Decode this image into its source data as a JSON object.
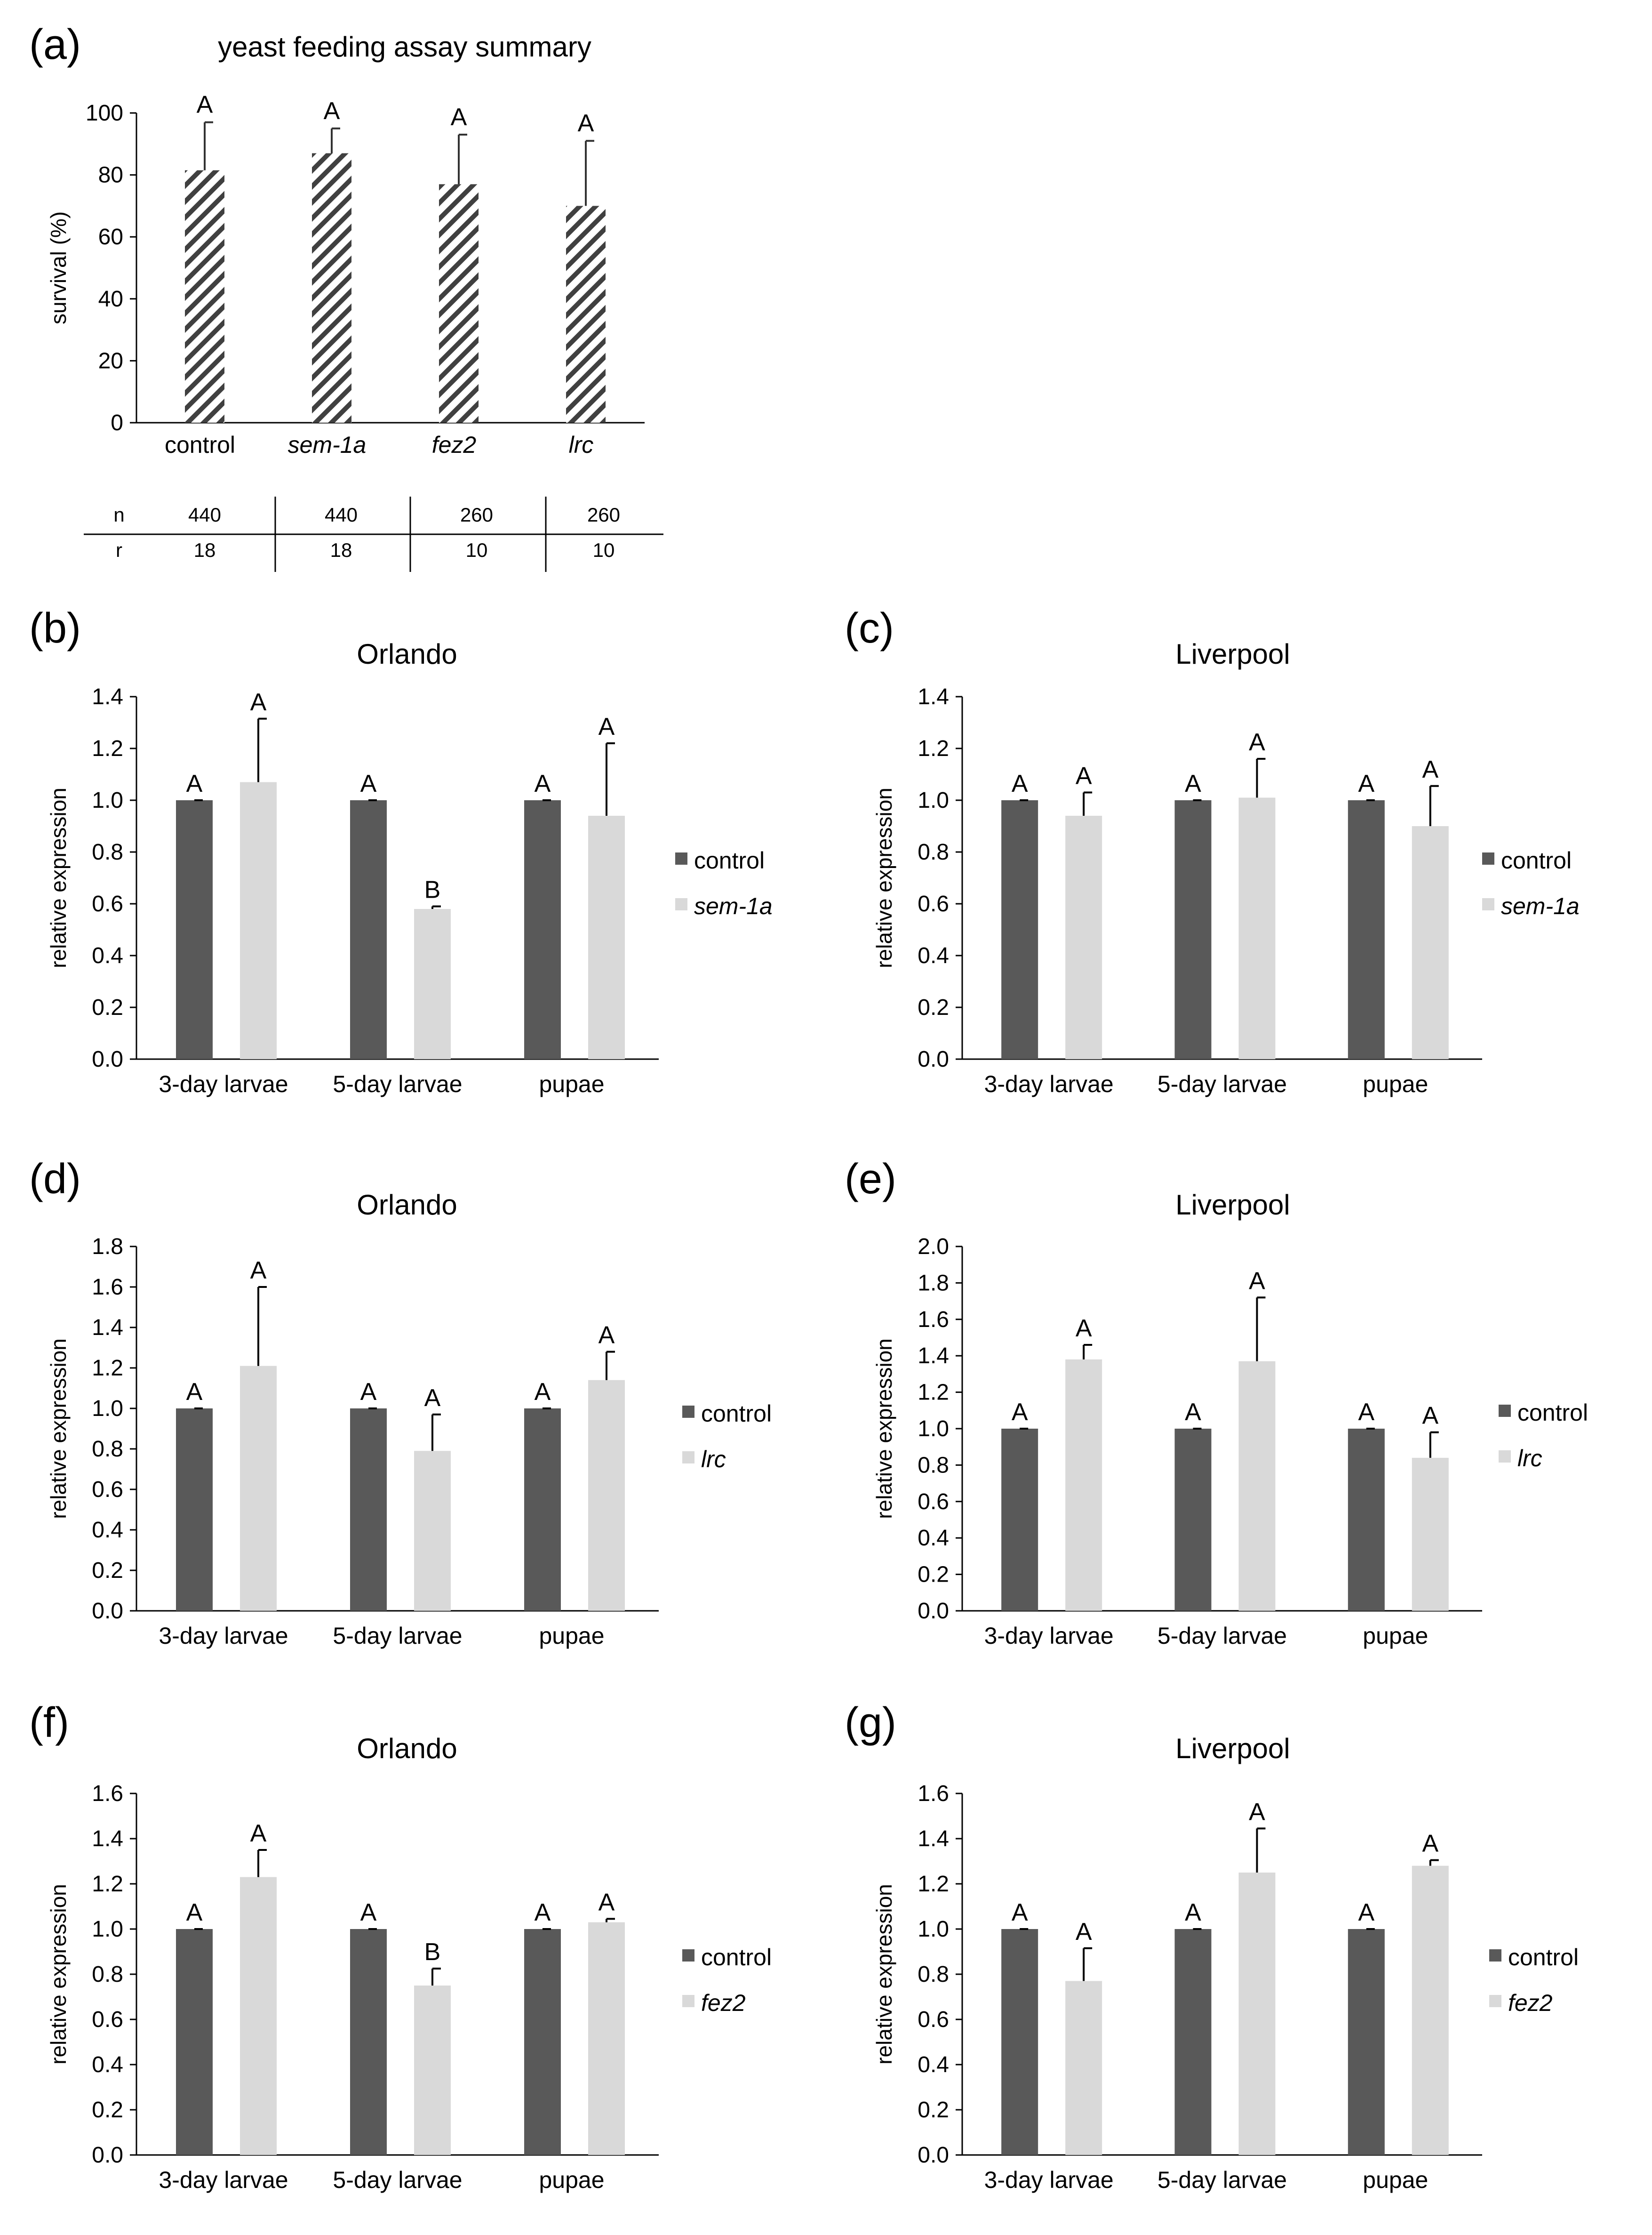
{
  "colors": {
    "control": "#595959",
    "treatment": "#d9d9d9",
    "axis": "#000000"
  },
  "chart_data": [
    {
      "id": "a",
      "type": "bar",
      "panel_label": "(a)",
      "title": "yeast feeding assay summary",
      "xlabel": "",
      "ylabel": "survival (%)",
      "ylim": [
        0,
        100
      ],
      "yticks": [
        "0",
        "20",
        "40",
        "60",
        "80",
        "100"
      ],
      "categories": [
        "control",
        "sem-1a",
        "fez2",
        "lrc"
      ],
      "italic_categories": [
        false,
        true,
        true,
        true
      ],
      "fill": "hatched",
      "values": [
        81.5,
        87,
        77,
        70
      ],
      "errors": [
        15.5,
        8,
        16,
        21
      ],
      "letters": [
        "A",
        "A",
        "A",
        "A"
      ],
      "table": {
        "row_labels": [
          "n",
          "r"
        ],
        "n": [
          "440",
          "440",
          "260",
          "260"
        ],
        "r": [
          "18",
          "18",
          "10",
          "10"
        ]
      }
    },
    {
      "id": "b",
      "type": "bar",
      "panel_label": "(b)",
      "title": "Orlando",
      "ylabel": "relative expression",
      "ylim": [
        0,
        1.4
      ],
      "yticks": [
        "0.0",
        "0.2",
        "0.4",
        "0.6",
        "0.8",
        "1.0",
        "1.2",
        "1.4"
      ],
      "categories": [
        "3-day larvae",
        "5-day larvae",
        "pupae"
      ],
      "series": [
        {
          "name": "control",
          "values": [
            1.0,
            1.0,
            1.0
          ],
          "errors": [
            0,
            0,
            0
          ],
          "letters": [
            "A",
            "A",
            "A"
          ]
        },
        {
          "name": "sem-1a",
          "italic": true,
          "values": [
            1.07,
            0.58,
            0.94
          ],
          "errors": [
            0.245,
            0.01,
            0.28
          ],
          "letters": [
            "A",
            "B",
            "A"
          ]
        }
      ]
    },
    {
      "id": "c",
      "type": "bar",
      "panel_label": "(c)",
      "title": "Liverpool",
      "ylabel": "relative expression",
      "ylim": [
        0,
        1.4
      ],
      "yticks": [
        "0.0",
        "0.2",
        "0.4",
        "0.6",
        "0.8",
        "1.0",
        "1.2",
        "1.4"
      ],
      "categories": [
        "3-day larvae",
        "5-day larvae",
        "pupae"
      ],
      "series": [
        {
          "name": "control",
          "values": [
            1.0,
            1.0,
            1.0
          ],
          "errors": [
            0,
            0,
            0
          ],
          "letters": [
            "A",
            "A",
            "A"
          ]
        },
        {
          "name": "sem-1a",
          "italic": true,
          "values": [
            0.94,
            1.01,
            0.9
          ],
          "errors": [
            0.09,
            0.15,
            0.155
          ],
          "letters": [
            "A",
            "A",
            "A"
          ]
        }
      ]
    },
    {
      "id": "d",
      "type": "bar",
      "panel_label": "(d)",
      "title": "Orlando",
      "ylabel": "relative expression",
      "ylim": [
        0,
        1.8
      ],
      "yticks": [
        "0.0",
        "0.2",
        "0.4",
        "0.6",
        "0.8",
        "1.0",
        "1.2",
        "1.4",
        "1.6",
        "1.8"
      ],
      "categories": [
        "3-day larvae",
        "5-day larvae",
        "pupae"
      ],
      "series": [
        {
          "name": "control",
          "values": [
            1.0,
            1.0,
            1.0
          ],
          "errors": [
            0,
            0,
            0
          ],
          "letters": [
            "A",
            "A",
            "A"
          ]
        },
        {
          "name": "lrc",
          "italic": true,
          "values": [
            1.21,
            0.79,
            1.14
          ],
          "errors": [
            0.39,
            0.18,
            0.14
          ],
          "letters": [
            "A",
            "A",
            "A"
          ]
        }
      ]
    },
    {
      "id": "e",
      "type": "bar",
      "panel_label": "(e)",
      "title": "Liverpool",
      "ylabel": "relative  expression",
      "ylim": [
        0,
        2.0
      ],
      "yticks": [
        "0.0",
        "0.2",
        "0.4",
        "0.6",
        "0.8",
        "1.0",
        "1.2",
        "1.4",
        "1.6",
        "1.8",
        "2.0"
      ],
      "categories": [
        "3-day larvae",
        "5-day larvae",
        "pupae"
      ],
      "series": [
        {
          "name": "control",
          "values": [
            1.0,
            1.0,
            1.0
          ],
          "errors": [
            0,
            0,
            0
          ],
          "letters": [
            "A",
            "A",
            "A"
          ]
        },
        {
          "name": "lrc",
          "italic": true,
          "values": [
            1.38,
            1.37,
            0.84
          ],
          "errors": [
            0.08,
            0.35,
            0.14
          ],
          "letters": [
            "A",
            "A",
            "A"
          ]
        }
      ]
    },
    {
      "id": "f",
      "type": "bar",
      "panel_label": "(f)",
      "title": "Orlando",
      "ylabel": "relative expression",
      "ylim": [
        0,
        1.6
      ],
      "yticks": [
        "0.0",
        "0.2",
        "0.4",
        "0.6",
        "0.8",
        "1.0",
        "1.2",
        "1.4",
        "1.6"
      ],
      "categories": [
        "3-day larvae",
        "5-day larvae",
        "pupae"
      ],
      "series": [
        {
          "name": "control",
          "values": [
            1.0,
            1.0,
            1.0
          ],
          "errors": [
            0,
            0,
            0
          ],
          "letters": [
            "A",
            "A",
            "A"
          ]
        },
        {
          "name": "fez2",
          "italic": true,
          "values": [
            1.23,
            0.75,
            1.03
          ],
          "errors": [
            0.12,
            0.075,
            0.015
          ],
          "letters": [
            "A",
            "B",
            "A"
          ]
        }
      ]
    },
    {
      "id": "g",
      "type": "bar",
      "panel_label": "(g)",
      "title": "Liverpool",
      "ylabel": "relative expression",
      "ylim": [
        0,
        1.6
      ],
      "yticks": [
        "0.0",
        "0.2",
        "0.4",
        "0.6",
        "0.8",
        "1.0",
        "1.2",
        "1.4",
        "1.6"
      ],
      "categories": [
        "3-day larvae",
        "5-day larvae",
        "pupae"
      ],
      "series": [
        {
          "name": "control",
          "values": [
            1.0,
            1.0,
            1.0
          ],
          "errors": [
            0,
            0,
            0
          ],
          "letters": [
            "A",
            "A",
            "A"
          ]
        },
        {
          "name": "fez2",
          "italic": true,
          "values": [
            0.77,
            1.25,
            1.28
          ],
          "errors": [
            0.145,
            0.195,
            0.025
          ],
          "letters": [
            "A",
            "A",
            "A"
          ]
        }
      ]
    }
  ]
}
